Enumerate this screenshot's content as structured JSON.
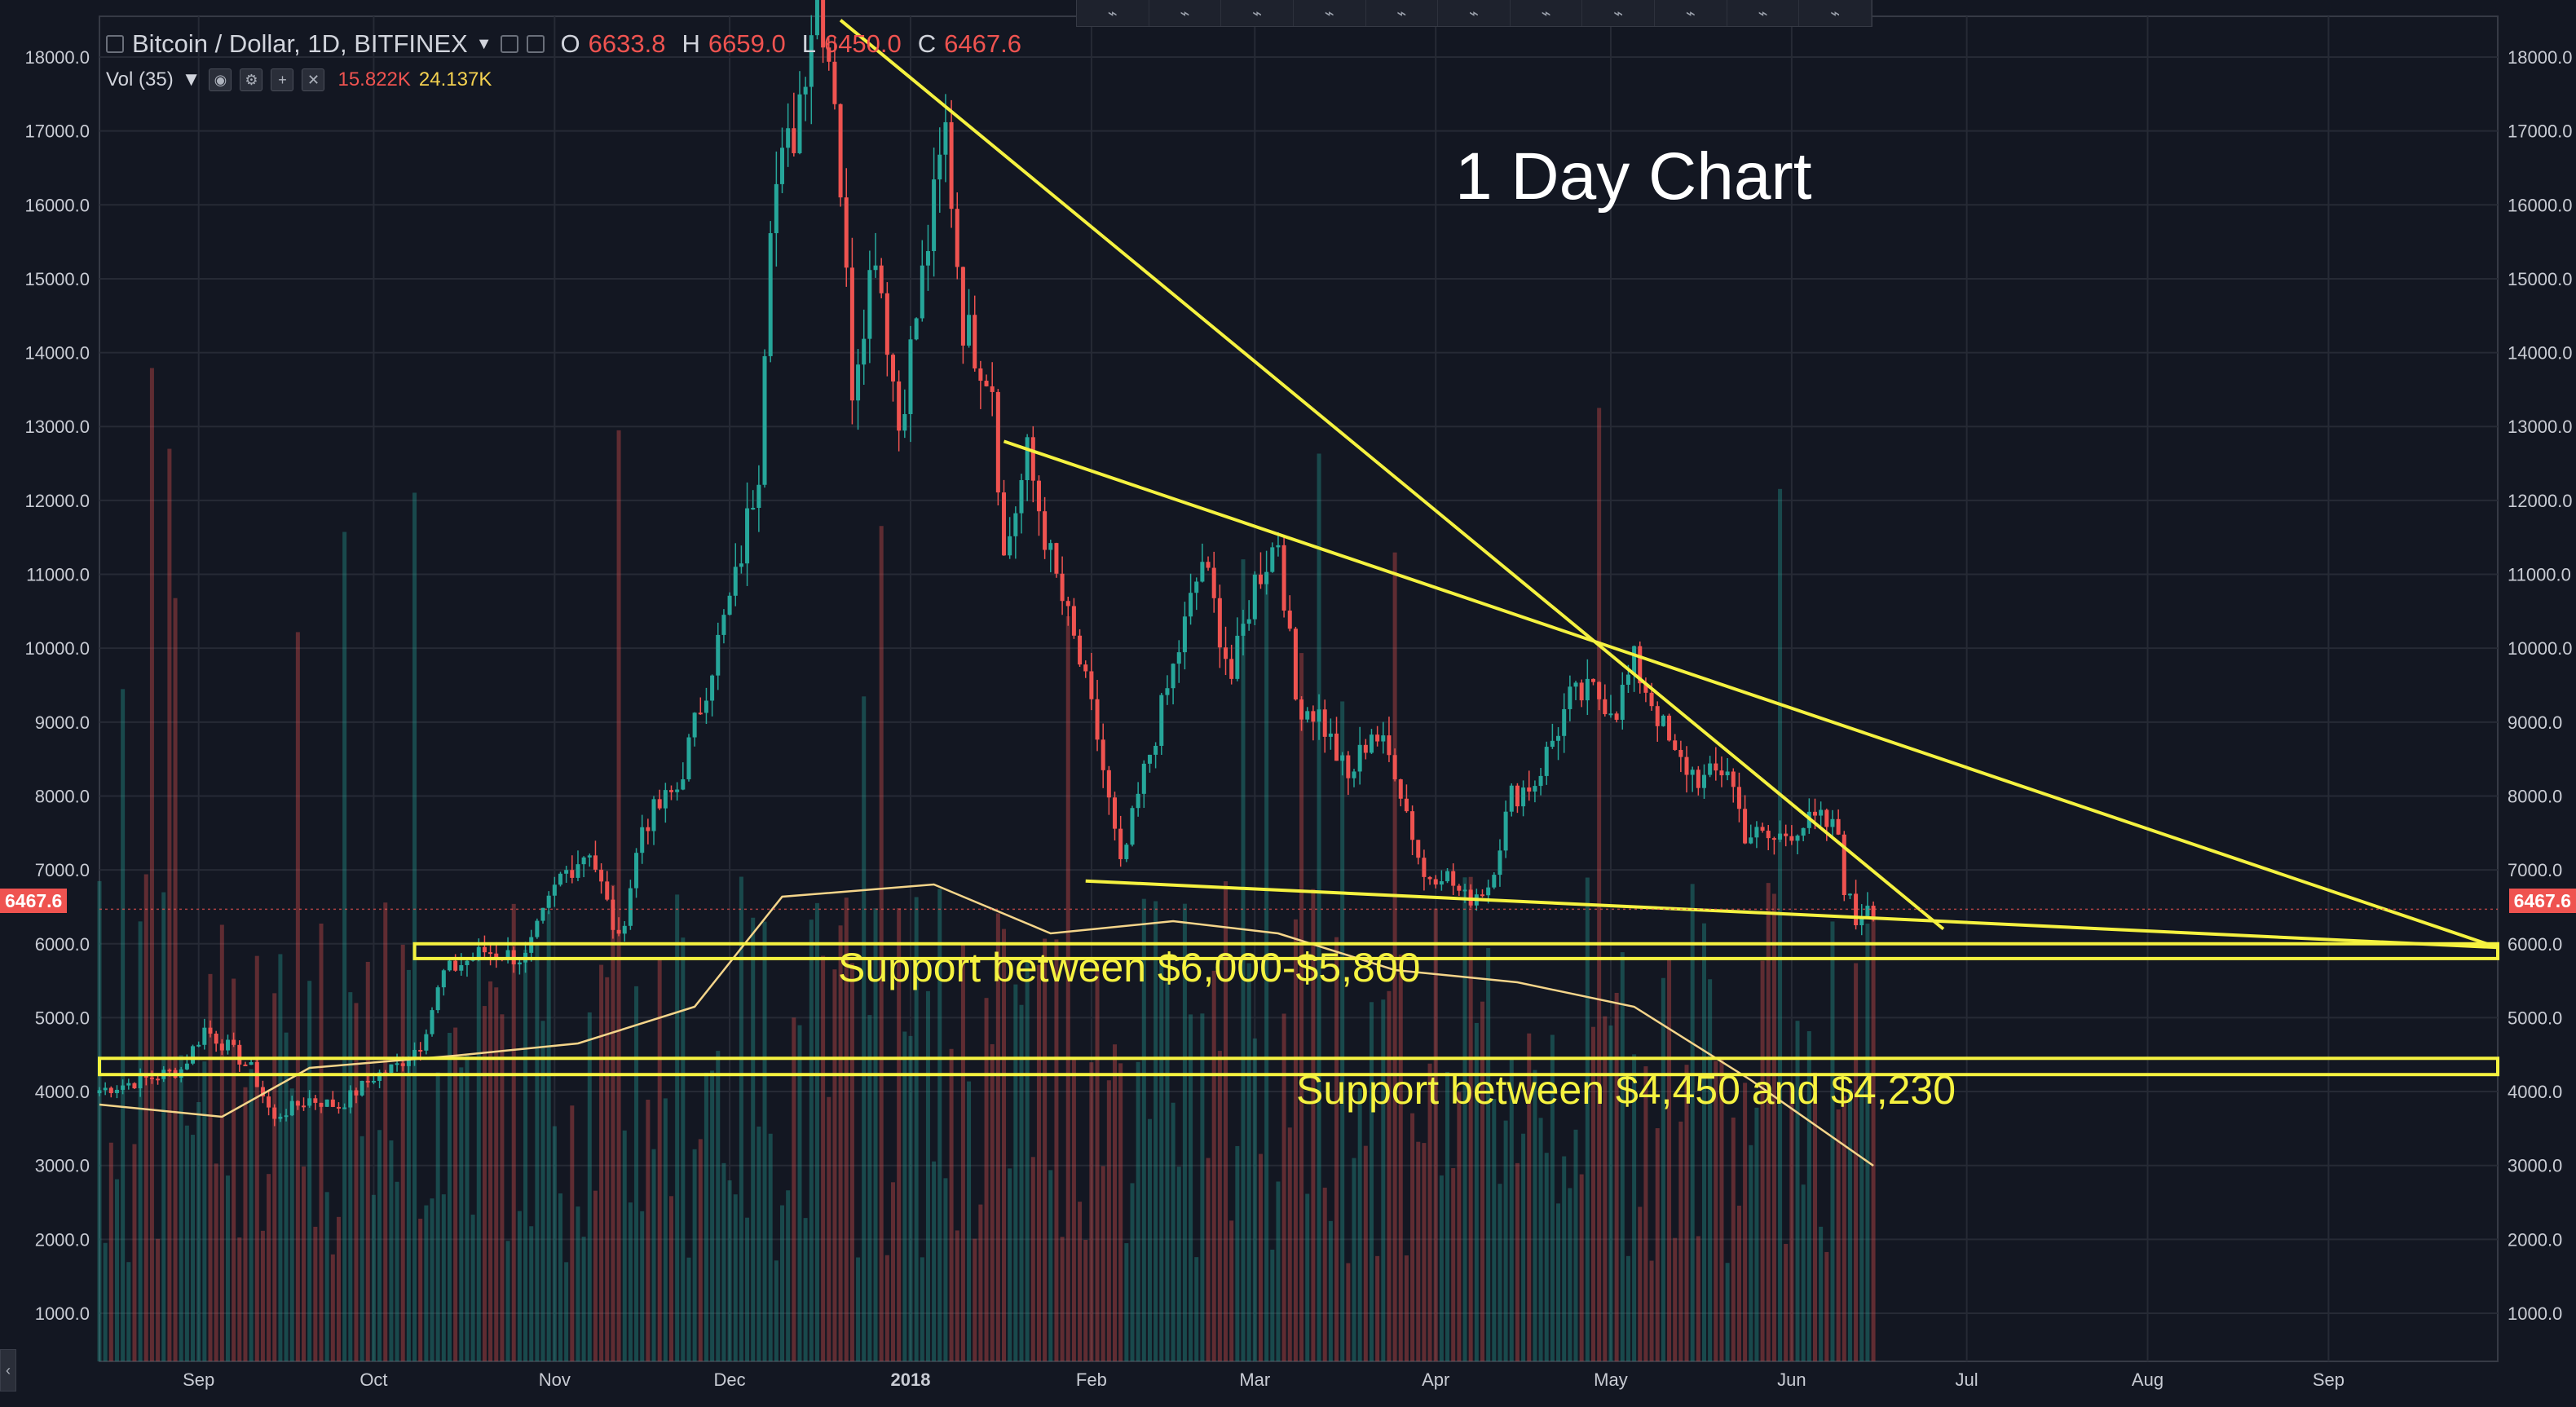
{
  "header": {
    "symbol_title": "Bitcoin / Dollar, 1D, BITFINEX",
    "ohlc": [
      {
        "k": "O",
        "v": "6633.8"
      },
      {
        "k": "H",
        "v": "6659.0"
      },
      {
        "k": "L",
        "v": "6450.0"
      },
      {
        "k": "C",
        "v": "6467.6"
      }
    ],
    "vol_label": "Vol (35)",
    "vol_value": "15.822K",
    "vol_ma_value": "24.137K"
  },
  "toolbar_icons": [
    "cursor-icon",
    "brush-icon",
    "lines-icon",
    "pitchfork-icon",
    "fib-icon",
    "pattern-icon",
    "path-icon",
    "node-icon",
    "measure-icon",
    "projection-icon",
    "arrow-icon"
  ],
  "current_price": "6467.6",
  "annotations": {
    "chart_title": "1 Day Chart",
    "support1": "Support between $6,000-$5,800",
    "support2": "Support between $4,450 and $4,230"
  },
  "colors": {
    "background": "#131722",
    "up": "#26a69a",
    "down": "#ef5350",
    "annotation": "#f5f240",
    "grid": "#262a35",
    "text": "#c9ccd4",
    "vol_ma": "#f5d58a"
  },
  "chart_data": {
    "type": "candlestick",
    "title": "Bitcoin / Dollar, 1D, BITFINEX",
    "y_ticks": [
      "18000.0",
      "17000.0",
      "16000.0",
      "15000.0",
      "14000.0",
      "13000.0",
      "12000.0",
      "11000.0",
      "10000.0",
      "9000.0",
      "8000.0",
      "7000.0",
      "6000.0",
      "5000.0",
      "4000.0",
      "3000.0",
      "2000.0",
      "1000.0"
    ],
    "x_ticks": [
      "Sep",
      "Oct",
      "Nov",
      "Dec",
      "2018",
      "Feb",
      "Mar",
      "Apr",
      "May",
      "Jun",
      "Jul",
      "Aug",
      "Sep"
    ],
    "x_range": [
      "2017-08-15",
      "2018-09-30"
    ],
    "ylim": [
      0,
      18200
    ],
    "close_series": [
      [
        "2017-08-15",
        4020
      ],
      [
        "2017-08-22",
        4150
      ],
      [
        "2017-08-29",
        4300
      ],
      [
        "2017-09-02",
        4850
      ],
      [
        "2017-09-06",
        4600
      ],
      [
        "2017-09-10",
        4300
      ],
      [
        "2017-09-14",
        3600
      ],
      [
        "2017-09-15",
        3700
      ],
      [
        "2017-09-20",
        3900
      ],
      [
        "2017-09-25",
        3800
      ],
      [
        "2017-10-01",
        4200
      ],
      [
        "2017-10-05",
        4350
      ],
      [
        "2017-10-09",
        4650
      ],
      [
        "2017-10-13",
        5600
      ],
      [
        "2017-10-20",
        5900
      ],
      [
        "2017-10-27",
        5800
      ],
      [
        "2017-11-02",
        6900
      ],
      [
        "2017-11-07",
        7300
      ],
      [
        "2017-11-12",
        6000
      ],
      [
        "2017-11-16",
        7600
      ],
      [
        "2017-11-22",
        8100
      ],
      [
        "2017-11-28",
        9800
      ],
      [
        "2017-12-02",
        10900
      ],
      [
        "2017-12-06",
        12500
      ],
      [
        "2017-12-08",
        16000
      ],
      [
        "2017-12-12",
        17000
      ],
      [
        "2017-12-16",
        19000
      ],
      [
        "2017-12-19",
        17600
      ],
      [
        "2017-12-22",
        13600
      ],
      [
        "2017-12-26",
        15500
      ],
      [
        "2017-12-30",
        13000
      ],
      [
        "2018-01-03",
        15000
      ],
      [
        "2018-01-07",
        17000
      ],
      [
        "2018-01-10",
        14400
      ],
      [
        "2018-01-15",
        13600
      ],
      [
        "2018-01-17",
        11200
      ],
      [
        "2018-01-21",
        12600
      ],
      [
        "2018-01-25",
        11200
      ],
      [
        "2018-01-30",
        9800
      ],
      [
        "2018-02-02",
        8800
      ],
      [
        "2018-02-06",
        7000
      ],
      [
        "2018-02-10",
        8300
      ],
      [
        "2018-02-16",
        10000
      ],
      [
        "2018-02-20",
        11200
      ],
      [
        "2018-02-25",
        9600
      ],
      [
        "2018-03-01",
        10900
      ],
      [
        "2018-03-05",
        11500
      ],
      [
        "2018-03-08",
        9300
      ],
      [
        "2018-03-12",
        9100
      ],
      [
        "2018-03-17",
        8200
      ],
      [
        "2018-03-21",
        8900
      ],
      [
        "2018-03-25",
        8400
      ],
      [
        "2018-03-30",
        6900
      ],
      [
        "2018-04-02",
        7000
      ],
      [
        "2018-04-06",
        6600
      ],
      [
        "2018-04-10",
        6800
      ],
      [
        "2018-04-14",
        8000
      ],
      [
        "2018-04-18",
        8200
      ],
      [
        "2018-04-24",
        9300
      ],
      [
        "2018-04-28",
        9400
      ],
      [
        "2018-05-02",
        9200
      ],
      [
        "2018-05-05",
        9800
      ],
      [
        "2018-05-08",
        9300
      ],
      [
        "2018-05-12",
        8500
      ],
      [
        "2018-05-17",
        8200
      ],
      [
        "2018-05-21",
        8400
      ],
      [
        "2018-05-24",
        7500
      ],
      [
        "2018-05-29",
        7400
      ],
      [
        "2018-06-02",
        7600
      ],
      [
        "2018-06-06",
        7650
      ],
      [
        "2018-06-09",
        7500
      ],
      [
        "2018-06-10",
        6800
      ],
      [
        "2018-06-12",
        6300
      ],
      [
        "2018-06-14",
        6600
      ],
      [
        "2018-06-15",
        6467.6
      ]
    ],
    "volume": {
      "ma_axis_note": "volume moving average drawn in lower pane",
      "ma_series": [
        [
          "2017-08-15",
          1050
        ],
        [
          "2017-09-05",
          1000
        ],
        [
          "2017-09-20",
          1200
        ],
        [
          "2017-10-15",
          1250
        ],
        [
          "2017-11-05",
          1300
        ],
        [
          "2017-11-25",
          1450
        ],
        [
          "2017-12-10",
          1900
        ],
        [
          "2018-01-05",
          1950
        ],
        [
          "2018-01-25",
          1750
        ],
        [
          "2018-02-15",
          1800
        ],
        [
          "2018-03-05",
          1750
        ],
        [
          "2018-03-25",
          1600
        ],
        [
          "2018-04-15",
          1550
        ],
        [
          "2018-05-05",
          1450
        ],
        [
          "2018-05-25",
          1150
        ],
        [
          "2018-06-15",
          800
        ]
      ]
    },
    "trendlines": [
      {
        "name": "upper-downtrend",
        "from": [
          "2017-12-20",
          18500
        ],
        "to": [
          "2018-06-27",
          6200
        ]
      },
      {
        "name": "descending-resistance",
        "from": [
          "2018-01-17",
          12800
        ],
        "to": [
          "2018-09-30",
          5950
        ]
      },
      {
        "name": "lower-support",
        "from": [
          "2018-01-31",
          6850
        ],
        "to": [
          "2018-09-30",
          5950
        ]
      }
    ],
    "support_zones": [
      {
        "label": "Support between $6,000-$5,800",
        "low": 5800,
        "high": 6000
      },
      {
        "label": "Support between $4,450 and $4,230",
        "low": 4230,
        "high": 4450
      }
    ]
  }
}
